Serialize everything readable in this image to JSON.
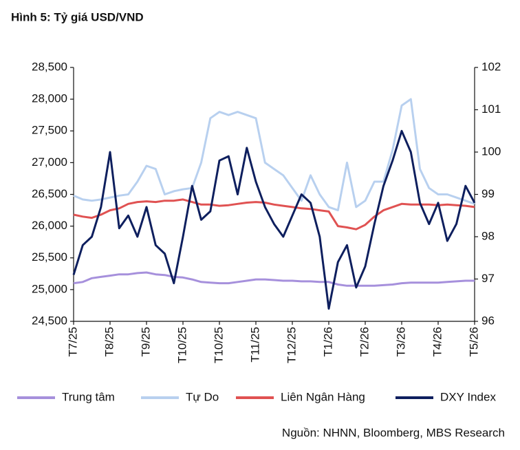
{
  "chart_data": {
    "type": "line",
    "title": "Hình 5: Tỷ giá USD/VND",
    "source": "Nguồn: NHNN, Bloomberg, MBS Research",
    "categories": [
      "T7/25",
      null,
      null,
      null,
      "T8/25",
      null,
      null,
      null,
      "T9/25",
      null,
      null,
      null,
      "T10/25",
      null,
      null,
      null,
      "T10/25",
      null,
      null,
      null,
      "T11/25",
      null,
      null,
      null,
      "T12/25",
      null,
      null,
      null,
      "T1/26",
      null,
      null,
      null,
      "T2/26",
      null,
      null,
      null,
      "T3/26",
      null,
      null,
      null,
      "T4/26",
      null,
      null,
      null,
      "T5/26"
    ],
    "ylim": [
      24500,
      28500
    ],
    "yticks": [
      {
        "value": 24500,
        "label": "24,500"
      },
      {
        "value": 25000,
        "label": "25,000"
      },
      {
        "value": 25500,
        "label": "25,500"
      },
      {
        "value": 26000,
        "label": "26,000"
      },
      {
        "value": 26500,
        "label": "26,500"
      },
      {
        "value": 27000,
        "label": "27,000"
      },
      {
        "value": 27500,
        "label": "27,500"
      },
      {
        "value": 28000,
        "label": "28,000"
      },
      {
        "value": 28500,
        "label": "28,500"
      }
    ],
    "y2lim": [
      96,
      102
    ],
    "y2ticks": [
      96,
      97,
      98,
      99,
      100,
      101,
      102
    ],
    "legend": "bottom",
    "series": [
      {
        "name": "Trung tâm",
        "color": "#a690dc",
        "values": [
          25100,
          25120,
          25180,
          25200,
          25220,
          25240,
          25240,
          25260,
          25270,
          25240,
          25230,
          25200,
          25190,
          25160,
          25120,
          25110,
          25100,
          25100,
          25120,
          25140,
          25160,
          25160,
          25150,
          25140,
          25140,
          25130,
          25130,
          25120,
          25120,
          25080,
          25060,
          25060,
          25060,
          25060,
          25070,
          25080,
          25100,
          25110,
          25110,
          25110,
          25110,
          25120,
          25130,
          25140,
          25140
        ]
      },
      {
        "name": "Tự Do",
        "color": "#b8d0ef",
        "values": [
          26480,
          26420,
          26400,
          26420,
          26450,
          26480,
          26500,
          26700,
          26950,
          26900,
          26500,
          26550,
          26580,
          26600,
          27000,
          27700,
          27800,
          27750,
          27800,
          27750,
          27700,
          27000,
          26900,
          26800,
          26600,
          26400,
          26800,
          26500,
          26300,
          26250,
          27000,
          26300,
          26400,
          26700,
          26700,
          27200,
          27900,
          28000,
          26900,
          26600,
          26500,
          26500,
          26450,
          26400,
          26350
        ]
      },
      {
        "name": "Liên Ngân Hàng",
        "color": "#e05252",
        "values": [
          26180,
          26150,
          26130,
          26180,
          26250,
          26280,
          26350,
          26380,
          26390,
          26380,
          26400,
          26400,
          26420,
          26380,
          26340,
          26340,
          26320,
          26330,
          26350,
          26370,
          26380,
          26370,
          26340,
          26320,
          26300,
          26280,
          26270,
          26250,
          26230,
          26000,
          25980,
          25950,
          26020,
          26150,
          26250,
          26300,
          26350,
          26340,
          26340,
          26340,
          26330,
          26340,
          26330,
          26320,
          26300
        ]
      },
      {
        "name": "DXY Index",
        "color": "#0e1f5e",
        "axis": "y2",
        "values": [
          97.1,
          97.8,
          98.0,
          98.7,
          100.0,
          98.2,
          98.5,
          98.0,
          98.7,
          97.8,
          97.6,
          96.9,
          98.0,
          99.2,
          98.4,
          98.6,
          99.8,
          99.9,
          99.0,
          100.1,
          99.3,
          98.7,
          98.3,
          98.0,
          98.5,
          99.0,
          98.8,
          98.0,
          96.3,
          97.4,
          97.8,
          96.8,
          97.3,
          98.3,
          99.2,
          99.8,
          100.5,
          100.0,
          98.8,
          98.3,
          98.8,
          97.9,
          98.3,
          99.2,
          98.8
        ]
      }
    ]
  }
}
